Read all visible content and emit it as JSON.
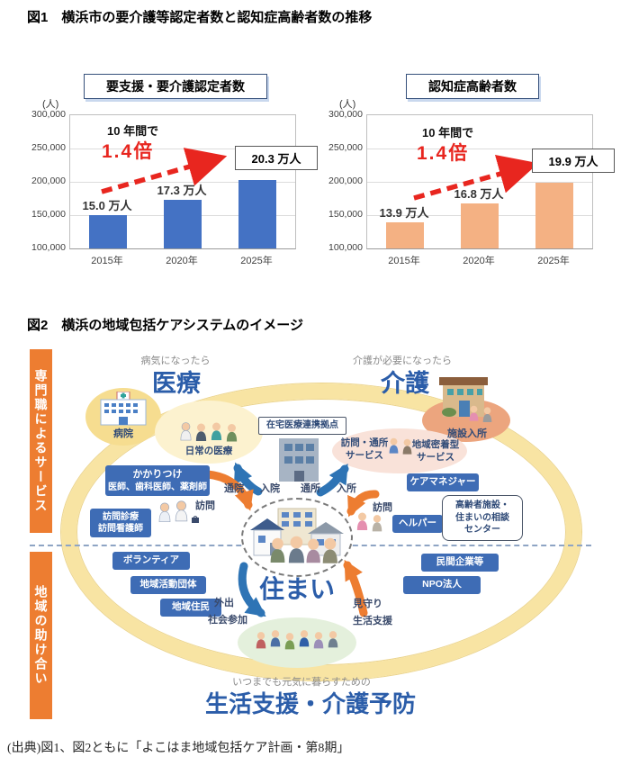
{
  "page": {
    "fig1_title": "図1　横浜市の要介護等認定者数と認知症高齢者数の推移",
    "fig2_title": "図2　横浜の地域包括ケアシステムのイメージ",
    "source": "(出典)図1、図2ともに「よこはま地域包括ケア計画・第8期」"
  },
  "colors": {
    "bar_blue": "#4472C4",
    "bar_orange": "#F4B183",
    "annotation_red": "#E8261F",
    "heading_blue": "#2B5DA9",
    "box_blue": "#3E6CB5",
    "sidebar_orange": "#ED7D31",
    "ring_yellow": "#F8E4A3"
  },
  "chart_data": [
    {
      "type": "bar",
      "title": "要支援・要介護認定者数",
      "unit_label": "(人)",
      "categories": [
        "2015年",
        "2020年",
        "2025年"
      ],
      "values": [
        150000,
        173000,
        203000
      ],
      "bar_labels": [
        "15.0 万人",
        "17.3 万人",
        "20.3 万人"
      ],
      "annotation_line1": "10 年間で",
      "annotation_line2": "1.4倍",
      "ylim": [
        100000,
        300000
      ],
      "yticks": [
        "300,000",
        "250,000",
        "200,000",
        "150,000",
        "100,000"
      ],
      "bar_color": "#4472C4",
      "grid": true,
      "legend": "none"
    },
    {
      "type": "bar",
      "title": "認知症高齢者数",
      "unit_label": "(人)",
      "categories": [
        "2015年",
        "2020年",
        "2025年"
      ],
      "values": [
        139000,
        168000,
        199000
      ],
      "bar_labels": [
        "13.9 万人",
        "16.8 万人",
        "19.9 万人"
      ],
      "annotation_line1": "10 年間で",
      "annotation_line2": "1.4倍",
      "ylim": [
        100000,
        300000
      ],
      "yticks": [
        "300,000",
        "250,000",
        "200,000",
        "150,000",
        "100,000"
      ],
      "bar_color": "#F4B183",
      "grid": true,
      "legend": "none"
    }
  ],
  "diagram": {
    "sidebar_top": "専門職によるサービス",
    "sidebar_bottom": "地域の助け合い",
    "medical_caption": "病気になったら",
    "medical_title": "医療",
    "care_caption": "介護が必要になったら",
    "care_title": "介護",
    "hospital": "病院",
    "daily_medical": "日常の医療",
    "zaitaku": "在宅医療連携拠点",
    "kakaritsuke_l1": "かかりつけ",
    "kakaritsuke_l2": "医師、歯科医師、薬剤師",
    "houmon_shinryo_l1": "訪問診療",
    "houmon_shinryo_l2": "訪問看護師",
    "visit_service_l1": "訪問・通所",
    "visit_service_l2": "サービス",
    "community_service_l1": "地域密着型",
    "community_service_l2": "サービス",
    "shisetsu": "施設入所",
    "care_manager": "ケアマネジャー",
    "soudan_l1": "高齢者施設・",
    "soudan_l2": "住まいの相談",
    "soudan_l3": "センター",
    "helper": "ヘルパー",
    "volunteer": "ボランティア",
    "chiiki_katsudo": "地域活動団体",
    "chiiki_jumin": "地域住民",
    "minkan": "民間企業等",
    "npo": "NPO法人",
    "sumai": "住まい",
    "support_caption": "いつまでも元気に暮らすための",
    "support_title": "生活支援・介護予防",
    "flows": {
      "tsuin": "通院",
      "nyuin": "入院",
      "tsusho": "通所",
      "nyusho": "入所",
      "houmon_left": "訪問",
      "houmon_right": "訪問",
      "gaishutsu": "外出",
      "shakai_sanka": "社会参加",
      "mimamori": "見守り",
      "seikatsu_shien": "生活支援"
    }
  }
}
